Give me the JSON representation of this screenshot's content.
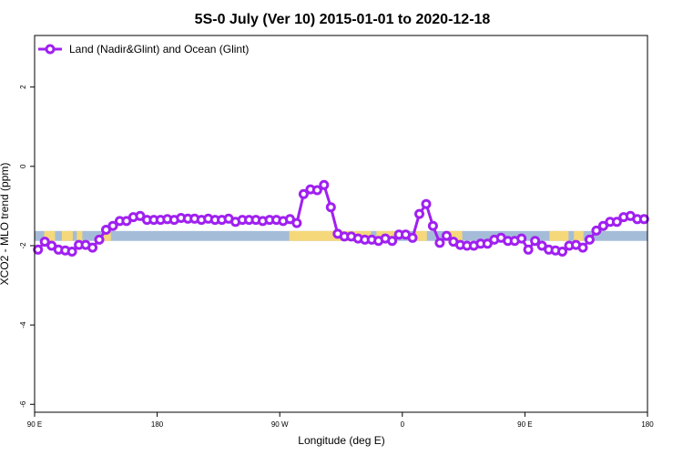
{
  "chart_data": {
    "type": "line",
    "title": "5S-0 July (Ver 10)   2015-01-01 to 2020-12-18",
    "xlabel": "Longitude (deg E)",
    "ylabel": "XCO2 - MLO trend (ppm)",
    "xlim": [
      90,
      540
    ],
    "ylim": [
      -6.2,
      3.3
    ],
    "x_ticks": [
      {
        "value": 90,
        "label": "90 E"
      },
      {
        "value": 180,
        "label": "180"
      },
      {
        "value": 270,
        "label": "90 W"
      },
      {
        "value": 360,
        "label": "0"
      },
      {
        "value": 450,
        "label": "90 E"
      },
      {
        "value": 540,
        "label": "180"
      }
    ],
    "y_ticks": [
      {
        "value": 2,
        "label": "2"
      },
      {
        "value": 0,
        "label": "0"
      },
      {
        "value": -2,
        "label": "-2"
      },
      {
        "value": -4,
        "label": "-4"
      },
      {
        "value": -6,
        "label": "-6"
      }
    ],
    "legend": {
      "position": "top-left",
      "entries": [
        "Land (Nadir&Glint) and Ocean (Glint)"
      ]
    },
    "series": [
      {
        "name": "Land (Nadir&Glint) and Ocean (Glint)",
        "color": "#a020f0",
        "x": [
          92.5,
          97.5,
          102.5,
          107.5,
          112.5,
          117.5,
          122.5,
          127.5,
          132.5,
          137.5,
          142.5,
          147.5,
          152.5,
          157.5,
          162.5,
          167.5,
          172.5,
          177.5,
          182.5,
          187.5,
          192.5,
          197.5,
          202.5,
          207.5,
          212.5,
          217.5,
          222.5,
          227.5,
          232.5,
          237.5,
          242.5,
          247.5,
          252.5,
          257.5,
          262.5,
          267.5,
          272.5,
          277.5,
          282.5,
          287.5,
          292.5,
          297.5,
          302.5,
          307.5,
          312.5,
          317.5,
          322.5,
          327.5,
          332.5,
          337.5,
          342.5,
          347.5,
          352.5,
          357.5,
          362.5,
          367.5,
          372.5,
          377.5,
          382.5,
          387.5,
          392.5,
          397.5,
          402.5,
          407.5,
          412.5,
          417.5,
          422.5,
          427.5,
          432.5,
          437.5,
          442.5,
          447.5,
          452.5,
          457.5,
          462.5,
          467.5,
          472.5,
          477.5,
          482.5,
          487.5,
          492.5,
          497.5,
          502.5,
          507.5,
          512.5,
          517.5,
          522.5,
          527.5,
          532.5,
          537.5
        ],
        "y": [
          -2.1,
          -1.9,
          -2.0,
          -2.1,
          -2.12,
          -2.15,
          -1.98,
          -1.98,
          -2.05,
          -1.85,
          -1.6,
          -1.5,
          -1.38,
          -1.38,
          -1.28,
          -1.25,
          -1.35,
          -1.35,
          -1.35,
          -1.33,
          -1.35,
          -1.3,
          -1.32,
          -1.32,
          -1.35,
          -1.32,
          -1.35,
          -1.35,
          -1.32,
          -1.4,
          -1.35,
          -1.35,
          -1.35,
          -1.38,
          -1.35,
          -1.35,
          -1.38,
          -1.33,
          -1.43,
          -0.7,
          -0.58,
          -0.6,
          -0.47,
          -1.03,
          -1.7,
          -1.77,
          -1.77,
          -1.82,
          -1.85,
          -1.85,
          -1.88,
          -1.82,
          -1.88,
          -1.72,
          -1.72,
          -1.8,
          -1.2,
          -0.95,
          -1.5,
          -1.93,
          -1.75,
          -1.9,
          -1.98,
          -2.0,
          -2.0,
          -1.95,
          -1.95,
          -1.85,
          -1.8,
          -1.88,
          -1.88,
          -1.82,
          -2.1,
          -1.88,
          -2.0,
          -2.1,
          -2.12,
          -2.15,
          -2.0,
          -1.98,
          -2.05,
          -1.85,
          -1.62,
          -1.5,
          -1.4,
          -1.4,
          -1.28,
          -1.25,
          -1.33,
          -1.33
        ]
      }
    ],
    "surface_band": {
      "y_range": [
        -1.88,
        -1.63
      ],
      "ocean_color": "#a5bcd9",
      "land_color": "#f5d87a",
      "land_ranges": [
        [
          97,
          105
        ],
        [
          110,
          118
        ],
        [
          121,
          125
        ],
        [
          140,
          146
        ],
        [
          277,
          337
        ],
        [
          341,
          356
        ],
        [
          370,
          378
        ],
        [
          393,
          404
        ],
        [
          468,
          482
        ],
        [
          486,
          493
        ]
      ]
    }
  }
}
